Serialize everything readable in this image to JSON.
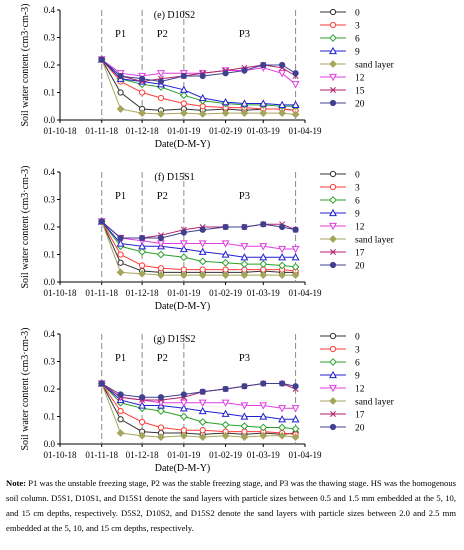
{
  "chart_data": [
    {
      "type": "line",
      "title": "(e) D10S2",
      "xlabel": "Date(D-M-Y)",
      "ylabel": "Soil water content (cm3·cm-3)",
      "ylim": [
        0,
        0.4
      ],
      "yticks": [
        "0.0",
        "0.1",
        "0.2",
        "0.3",
        "0.4"
      ],
      "x_ticks": [
        "01-10-18",
        "01-11-18",
        "01-12-18",
        "01-01-19",
        "01-02-19",
        "01-03-19",
        "01-04-19"
      ],
      "period_labels": [
        "P1",
        "P2",
        "P3"
      ],
      "legend_placement": "right",
      "series": [
        {
          "name": "0",
          "color": "#333333",
          "marker": "circle-open",
          "x": [
            "2018-11-01",
            "2018-11-15",
            "2018-12-01",
            "2018-12-15",
            "2019-01-01",
            "2019-01-15",
            "2019-02-01",
            "2019-02-15",
            "2019-03-01",
            "2019-03-15",
            "2019-03-25"
          ],
          "values": [
            0.22,
            0.1,
            0.04,
            0.035,
            0.04,
            0.035,
            0.04,
            0.035,
            0.04,
            0.04,
            0.035
          ]
        },
        {
          "name": "3",
          "color": "#ff3b3b",
          "marker": "circle-open",
          "x": [
            "2018-11-01",
            "2018-11-15",
            "2018-12-01",
            "2018-12-15",
            "2019-01-01",
            "2019-01-15",
            "2019-02-01",
            "2019-02-15",
            "2019-03-01",
            "2019-03-15",
            "2019-03-25"
          ],
          "values": [
            0.22,
            0.14,
            0.1,
            0.08,
            0.06,
            0.05,
            0.045,
            0.045,
            0.04,
            0.04,
            0.035
          ]
        },
        {
          "name": "6",
          "color": "#2aa02a",
          "marker": "diamond-open",
          "x": [
            "2018-11-01",
            "2018-11-15",
            "2018-12-01",
            "2018-12-15",
            "2019-01-01",
            "2019-01-15",
            "2019-02-01",
            "2019-02-15",
            "2019-03-01",
            "2019-03-15",
            "2019-03-25"
          ],
          "values": [
            0.22,
            0.15,
            0.13,
            0.12,
            0.09,
            0.07,
            0.06,
            0.055,
            0.055,
            0.05,
            0.05
          ]
        },
        {
          "name": "9",
          "color": "#2020d0",
          "marker": "triangle-open",
          "x": [
            "2018-11-01",
            "2018-11-15",
            "2018-12-01",
            "2018-12-15",
            "2019-01-01",
            "2019-01-15",
            "2019-02-01",
            "2019-02-15",
            "2019-03-01",
            "2019-03-15",
            "2019-03-25"
          ],
          "values": [
            0.22,
            0.15,
            0.14,
            0.13,
            0.11,
            0.08,
            0.065,
            0.06,
            0.06,
            0.055,
            0.055
          ]
        },
        {
          "name": "sand layer",
          "color": "#a5a55c",
          "marker": "diamond-filled",
          "x": [
            "2018-11-01",
            "2018-11-15",
            "2018-12-01",
            "2018-12-15",
            "2019-01-01",
            "2019-01-15",
            "2019-02-01",
            "2019-02-15",
            "2019-03-01",
            "2019-03-15",
            "2019-03-25"
          ],
          "values": [
            0.22,
            0.04,
            0.025,
            0.022,
            0.025,
            0.022,
            0.025,
            0.025,
            0.025,
            0.025,
            0.02
          ]
        },
        {
          "name": "12",
          "color": "#e03ce0",
          "marker": "triangle-down-open",
          "x": [
            "2018-11-01",
            "2018-11-15",
            "2018-12-01",
            "2018-12-15",
            "2019-01-01",
            "2019-01-15",
            "2019-02-01",
            "2019-02-15",
            "2019-03-01",
            "2019-03-15",
            "2019-03-25"
          ],
          "values": [
            0.22,
            0.17,
            0.16,
            0.17,
            0.17,
            0.17,
            0.18,
            0.18,
            0.19,
            0.17,
            0.13
          ]
        },
        {
          "name": "15",
          "color": "#b0206a",
          "marker": "x",
          "x": [
            "2018-11-01",
            "2018-11-15",
            "2018-12-01",
            "2018-12-15",
            "2019-01-01",
            "2019-01-15",
            "2019-02-01",
            "2019-02-15",
            "2019-03-01",
            "2019-03-15",
            "2019-03-25"
          ],
          "values": [
            0.22,
            0.16,
            0.14,
            0.15,
            0.16,
            0.17,
            0.18,
            0.19,
            0.2,
            0.19,
            0.16
          ]
        },
        {
          "name": "20",
          "color": "#404090",
          "marker": "circle-filled",
          "x": [
            "2018-11-01",
            "2018-11-15",
            "2018-12-01",
            "2018-12-15",
            "2019-01-01",
            "2019-01-15",
            "2019-02-01",
            "2019-02-15",
            "2019-03-01",
            "2019-03-15",
            "2019-03-25"
          ],
          "values": [
            0.22,
            0.16,
            0.15,
            0.14,
            0.16,
            0.16,
            0.17,
            0.18,
            0.2,
            0.2,
            0.17
          ]
        }
      ]
    },
    {
      "type": "line",
      "title": "(f) D15S1",
      "xlabel": "Date(D-M-Y)",
      "ylabel": "Soil water content (cm3·cm-3)",
      "ylim": [
        0,
        0.4
      ],
      "yticks": [
        "0.0",
        "0.1",
        "0.2",
        "0.3",
        "0.4"
      ],
      "x_ticks": [
        "01-10-18",
        "01-11-18",
        "01-12-18",
        "01-01-19",
        "01-02-19",
        "01-03-19",
        "01-04-19"
      ],
      "period_labels": [
        "P1",
        "P2",
        "P3"
      ],
      "legend_placement": "right",
      "series": [
        {
          "name": "0",
          "color": "#333333",
          "marker": "circle-open",
          "x": [
            "2018-11-01",
            "2018-11-15",
            "2018-12-01",
            "2018-12-15",
            "2019-01-01",
            "2019-01-15",
            "2019-02-01",
            "2019-02-15",
            "2019-03-01",
            "2019-03-15",
            "2019-03-25"
          ],
          "values": [
            0.22,
            0.07,
            0.04,
            0.035,
            0.035,
            0.035,
            0.035,
            0.035,
            0.04,
            0.035,
            0.035
          ]
        },
        {
          "name": "3",
          "color": "#ff3b3b",
          "marker": "circle-open",
          "x": [
            "2018-11-01",
            "2018-11-15",
            "2018-12-01",
            "2018-12-15",
            "2019-01-01",
            "2019-01-15",
            "2019-02-01",
            "2019-02-15",
            "2019-03-01",
            "2019-03-15",
            "2019-03-25"
          ],
          "values": [
            0.22,
            0.1,
            0.06,
            0.05,
            0.045,
            0.045,
            0.045,
            0.045,
            0.045,
            0.045,
            0.04
          ]
        },
        {
          "name": "6",
          "color": "#2aa02a",
          "marker": "diamond-open",
          "x": [
            "2018-11-01",
            "2018-11-15",
            "2018-12-01",
            "2018-12-15",
            "2019-01-01",
            "2019-01-15",
            "2019-02-01",
            "2019-02-15",
            "2019-03-01",
            "2019-03-15",
            "2019-03-25"
          ],
          "values": [
            0.22,
            0.13,
            0.11,
            0.1,
            0.09,
            0.075,
            0.07,
            0.065,
            0.065,
            0.06,
            0.055
          ]
        },
        {
          "name": "9",
          "color": "#2020d0",
          "marker": "triangle-open",
          "x": [
            "2018-11-01",
            "2018-11-15",
            "2018-12-01",
            "2018-12-15",
            "2019-01-01",
            "2019-01-15",
            "2019-02-01",
            "2019-02-15",
            "2019-03-01",
            "2019-03-15",
            "2019-03-25"
          ],
          "values": [
            0.22,
            0.14,
            0.13,
            0.13,
            0.12,
            0.11,
            0.1,
            0.09,
            0.09,
            0.09,
            0.09
          ]
        },
        {
          "name": "12",
          "color": "#e03ce0",
          "marker": "triangle-down-open",
          "x": [
            "2018-11-01",
            "2018-11-15",
            "2018-12-01",
            "2018-12-15",
            "2019-01-01",
            "2019-01-15",
            "2019-02-01",
            "2019-02-15",
            "2019-03-01",
            "2019-03-15",
            "2019-03-25"
          ],
          "values": [
            0.22,
            0.16,
            0.15,
            0.14,
            0.14,
            0.14,
            0.14,
            0.13,
            0.13,
            0.12,
            0.12
          ]
        },
        {
          "name": "sand layer",
          "color": "#a5a55c",
          "marker": "diamond-filled",
          "x": [
            "2018-11-01",
            "2018-11-15",
            "2018-12-01",
            "2018-12-15",
            "2019-01-01",
            "2019-01-15",
            "2019-02-01",
            "2019-02-15",
            "2019-03-01",
            "2019-03-15",
            "2019-03-25"
          ],
          "values": [
            0.22,
            0.035,
            0.03,
            0.025,
            0.025,
            0.025,
            0.025,
            0.025,
            0.025,
            0.025,
            0.025
          ]
        },
        {
          "name": "17",
          "color": "#b0206a",
          "marker": "x",
          "x": [
            "2018-11-01",
            "2018-11-15",
            "2018-12-01",
            "2018-12-15",
            "2019-01-01",
            "2019-01-15",
            "2019-02-01",
            "2019-02-15",
            "2019-03-01",
            "2019-03-15",
            "2019-03-25"
          ],
          "values": [
            0.22,
            0.16,
            0.16,
            0.17,
            0.19,
            0.2,
            0.2,
            0.2,
            0.21,
            0.21,
            0.19
          ]
        },
        {
          "name": "20",
          "color": "#404090",
          "marker": "circle-filled",
          "x": [
            "2018-11-01",
            "2018-11-15",
            "2018-12-01",
            "2018-12-15",
            "2019-01-01",
            "2019-01-15",
            "2019-02-01",
            "2019-02-15",
            "2019-03-01",
            "2019-03-15",
            "2019-03-25"
          ],
          "values": [
            0.22,
            0.16,
            0.16,
            0.16,
            0.18,
            0.19,
            0.2,
            0.2,
            0.21,
            0.2,
            0.19
          ]
        }
      ]
    },
    {
      "type": "line",
      "title": "(g) D15S2",
      "xlabel": "Date(D-M-Y)",
      "ylabel": "Soil water content (cm3·cm-3)",
      "ylim": [
        0,
        0.4
      ],
      "yticks": [
        "0.0",
        "0.1",
        "0.2",
        "0.3",
        "0.4"
      ],
      "x_ticks": [
        "01-10-18",
        "01-11-18",
        "01-12-18",
        "01-01-19",
        "01-02-19",
        "01-03-19",
        "01-04-19"
      ],
      "period_labels": [
        "P1",
        "P2",
        "P3"
      ],
      "legend_placement": "right",
      "series": [
        {
          "name": "0",
          "color": "#333333",
          "marker": "circle-open",
          "x": [
            "2018-11-01",
            "2018-11-15",
            "2018-12-01",
            "2018-12-15",
            "2019-01-01",
            "2019-01-15",
            "2019-02-01",
            "2019-02-15",
            "2019-03-01",
            "2019-03-15",
            "2019-03-25"
          ],
          "values": [
            0.22,
            0.09,
            0.045,
            0.04,
            0.04,
            0.035,
            0.04,
            0.035,
            0.04,
            0.035,
            0.04
          ]
        },
        {
          "name": "3",
          "color": "#ff3b3b",
          "marker": "circle-open",
          "x": [
            "2018-11-01",
            "2018-11-15",
            "2018-12-01",
            "2018-12-15",
            "2019-01-01",
            "2019-01-15",
            "2019-02-01",
            "2019-02-15",
            "2019-03-01",
            "2019-03-15",
            "2019-03-25"
          ],
          "values": [
            0.22,
            0.12,
            0.08,
            0.06,
            0.05,
            0.05,
            0.045,
            0.045,
            0.045,
            0.04,
            0.035
          ]
        },
        {
          "name": "6",
          "color": "#2aa02a",
          "marker": "diamond-open",
          "x": [
            "2018-11-01",
            "2018-11-15",
            "2018-12-01",
            "2018-12-15",
            "2019-01-01",
            "2019-01-15",
            "2019-02-01",
            "2019-02-15",
            "2019-03-01",
            "2019-03-15",
            "2019-03-25"
          ],
          "values": [
            0.22,
            0.15,
            0.13,
            0.12,
            0.1,
            0.08,
            0.07,
            0.065,
            0.06,
            0.06,
            0.055
          ]
        },
        {
          "name": "9",
          "color": "#2020d0",
          "marker": "triangle-open",
          "x": [
            "2018-11-01",
            "2018-11-15",
            "2018-12-01",
            "2018-12-15",
            "2019-01-01",
            "2019-01-15",
            "2019-02-01",
            "2019-02-15",
            "2019-03-01",
            "2019-03-15",
            "2019-03-25"
          ],
          "values": [
            0.22,
            0.16,
            0.14,
            0.14,
            0.13,
            0.12,
            0.11,
            0.1,
            0.1,
            0.09,
            0.09
          ]
        },
        {
          "name": "12",
          "color": "#e03ce0",
          "marker": "triangle-down-open",
          "x": [
            "2018-11-01",
            "2018-11-15",
            "2018-12-01",
            "2018-12-15",
            "2019-01-01",
            "2019-01-15",
            "2019-02-01",
            "2019-02-15",
            "2019-03-01",
            "2019-03-15",
            "2019-03-25"
          ],
          "values": [
            0.22,
            0.17,
            0.16,
            0.15,
            0.15,
            0.15,
            0.15,
            0.14,
            0.14,
            0.13,
            0.13
          ]
        },
        {
          "name": "sand layer",
          "color": "#a5a55c",
          "marker": "diamond-filled",
          "x": [
            "2018-11-01",
            "2018-11-15",
            "2018-12-01",
            "2018-12-15",
            "2019-01-01",
            "2019-01-15",
            "2019-02-01",
            "2019-02-15",
            "2019-03-01",
            "2019-03-15",
            "2019-03-25"
          ],
          "values": [
            0.22,
            0.04,
            0.03,
            0.025,
            0.03,
            0.025,
            0.03,
            0.025,
            0.03,
            0.03,
            0.025
          ]
        },
        {
          "name": "17",
          "color": "#b0206a",
          "marker": "x",
          "x": [
            "2018-11-01",
            "2018-11-15",
            "2018-12-01",
            "2018-12-15",
            "2019-01-01",
            "2019-01-15",
            "2019-02-01",
            "2019-02-15",
            "2019-03-01",
            "2019-03-15",
            "2019-03-25"
          ],
          "values": [
            0.22,
            0.17,
            0.16,
            0.16,
            0.17,
            0.19,
            0.2,
            0.21,
            0.22,
            0.22,
            0.2
          ]
        },
        {
          "name": "20",
          "color": "#404090",
          "marker": "circle-filled",
          "x": [
            "2018-11-01",
            "2018-11-15",
            "2018-12-01",
            "2018-12-15",
            "2019-01-01",
            "2019-01-15",
            "2019-02-01",
            "2019-02-15",
            "2019-03-01",
            "2019-03-15",
            "2019-03-25"
          ],
          "values": [
            0.22,
            0.18,
            0.17,
            0.17,
            0.18,
            0.19,
            0.2,
            0.21,
            0.22,
            0.22,
            0.21
          ]
        }
      ]
    }
  ],
  "note": {
    "label": "Note:",
    "text": "P1 was the unstable freezing stage, P2 was the stable freezing stage, and P3 was the thawing stage. HS was the homogenous soil column. D5S1, D10S1, and D15S1 denote the sand layers with particle sizes between 0.5 and 1.5 mm embedded at the 5, 10, and 15 cm depths, respectively. D5S2, D10S2, and D15S2 denote the sand layers with particle sizes between 2.0 and 2.5 mm embedded at the 5, 10, and 15 cm depths, respectively."
  }
}
